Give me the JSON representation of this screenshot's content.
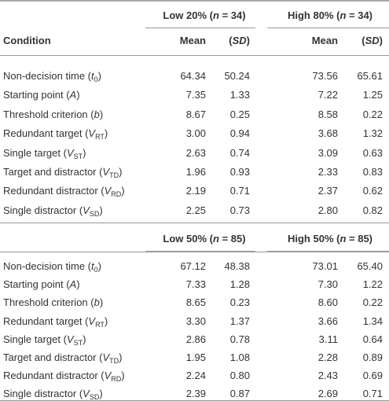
{
  "table": {
    "condition": "Condition",
    "column_headers": [
      "Mean",
      [
        "(",
        {
          "italic": "SD"
        },
        ")"
      ],
      "Mean",
      [
        "(",
        {
          "italic": "SD"
        },
        ")"
      ]
    ],
    "sections": [
      {
        "groups": [
          [
            "Low 20% (",
            {
              "italic": "n"
            },
            " = 34)"
          ],
          [
            "High 80% (",
            {
              "italic": "n"
            },
            " = 34)"
          ]
        ],
        "rows": [
          {
            "label": [
              "Non-decision time (",
              {
                "italic": "t"
              },
              {
                "sub": "0"
              },
              ")"
            ],
            "values": [
              "64.34",
              "50.24",
              "73.56",
              "65.61"
            ]
          },
          {
            "label": [
              "Starting point (",
              {
                "italic": "A"
              },
              ")"
            ],
            "values": [
              "7.35",
              "1.33",
              "7.22",
              "1.25"
            ]
          },
          {
            "label": [
              "Threshold criterion (",
              {
                "italic": "b"
              },
              ")"
            ],
            "values": [
              "8.67",
              "0.25",
              "8.58",
              "0.22"
            ]
          },
          {
            "label": [
              "Redundant target (",
              {
                "italic": "V"
              },
              {
                "sub": "RT"
              },
              ")"
            ],
            "values": [
              "3.00",
              "0.94",
              "3.68",
              "1.32"
            ]
          },
          {
            "label": [
              "Single target (",
              {
                "italic": "V"
              },
              {
                "sub": "ST"
              },
              ")"
            ],
            "values": [
              "2.63",
              "0.74",
              "3.09",
              "0.63"
            ]
          },
          {
            "label": [
              "Target and distractor (",
              {
                "italic": "V"
              },
              {
                "sub": "TD"
              },
              ")"
            ],
            "values": [
              "1.96",
              "0.93",
              "2.33",
              "0.83"
            ]
          },
          {
            "label": [
              "Redundant distractor (",
              {
                "italic": "V"
              },
              {
                "sub": "RD"
              },
              ")"
            ],
            "values": [
              "2.19",
              "0.71",
              "2.37",
              "0.62"
            ]
          },
          {
            "label": [
              "Single distractor (",
              {
                "italic": "V"
              },
              {
                "sub": "SD"
              },
              ")"
            ],
            "values": [
              "2.25",
              "0.73",
              "2.80",
              "0.82"
            ]
          }
        ]
      },
      {
        "groups": [
          [
            "Low 50% (",
            {
              "italic": "n"
            },
            " = 85)"
          ],
          [
            "High 50% (",
            {
              "italic": "n"
            },
            " = 85)"
          ]
        ],
        "rows": [
          {
            "label": [
              "Non-decision time (",
              {
                "italic": "t"
              },
              {
                "sub": "0"
              },
              ")"
            ],
            "values": [
              "67.12",
              "48.38",
              "73.01",
              "65.40"
            ]
          },
          {
            "label": [
              "Starting point (",
              {
                "italic": "A"
              },
              ")"
            ],
            "values": [
              "7.33",
              "1.28",
              "7.30",
              "1.22"
            ]
          },
          {
            "label": [
              "Threshold criterion (",
              {
                "italic": "b"
              },
              ")"
            ],
            "values": [
              "8.65",
              "0.23",
              "8.60",
              "0.22"
            ]
          },
          {
            "label": [
              "Redundant target (",
              {
                "italic": "V"
              },
              {
                "sub": "RT"
              },
              ")"
            ],
            "values": [
              "3.30",
              "1.37",
              "3.66",
              "1.34"
            ]
          },
          {
            "label": [
              "Single target (",
              {
                "italic": "V"
              },
              {
                "sub": "ST"
              },
              ")"
            ],
            "values": [
              "2.86",
              "0.78",
              "3.11",
              "0.64"
            ]
          },
          {
            "label": [
              "Target and distractor (",
              {
                "italic": "V"
              },
              {
                "sub": "TD"
              },
              ")"
            ],
            "values": [
              "1.95",
              "1.08",
              "2.28",
              "0.89"
            ]
          },
          {
            "label": [
              "Redundant distractor (",
              {
                "italic": "V"
              },
              {
                "sub": "RD"
              },
              ")"
            ],
            "values": [
              "2.24",
              "0.80",
              "2.43",
              "0.69"
            ]
          },
          {
            "label": [
              "Single distractor (",
              {
                "italic": "V"
              },
              {
                "sub": "SD"
              },
              ")"
            ],
            "values": [
              "2.39",
              "0.87",
              "2.69",
              "0.71"
            ]
          }
        ]
      }
    ]
  }
}
